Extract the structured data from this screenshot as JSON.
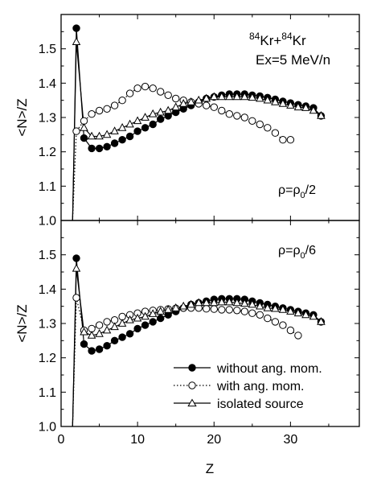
{
  "chart_data": [
    {
      "type": "line",
      "xlabel": "",
      "ylabel": "<N>/Z",
      "xlim": [
        0,
        39
      ],
      "ylim": [
        1.0,
        1.6
      ],
      "xticks": [
        0,
        10,
        20,
        30
      ],
      "yticks": [
        1.0,
        1.1,
        1.2,
        1.3,
        1.4,
        1.5
      ],
      "yticklabels": [
        "1.0",
        "1.1",
        "1.2",
        "1.3",
        "1.4",
        "1.5"
      ],
      "annotations": [
        {
          "name": "system",
          "text": "84Kr+84Kr",
          "parts": [
            "84",
            "Kr+",
            "84",
            "Kr"
          ]
        },
        {
          "name": "energy",
          "text": "Ex=5 MeV/n"
        },
        {
          "name": "density",
          "text": "ρ=ρ0/2",
          "parts": [
            "ρ=ρ",
            "0",
            "/2"
          ]
        }
      ],
      "series": [
        {
          "name": "without ang. mom.",
          "style": "solid-line-filled-circle",
          "x": [
            2,
            3,
            4,
            5,
            6,
            7,
            8,
            9,
            10,
            11,
            12,
            13,
            14,
            15,
            16,
            17,
            18,
            19,
            20,
            21,
            22,
            23,
            24,
            25,
            26,
            27,
            28,
            29,
            30,
            31,
            32,
            33,
            34
          ],
          "y": [
            1.56,
            1.24,
            1.21,
            1.21,
            1.215,
            1.225,
            1.235,
            1.245,
            1.26,
            1.27,
            1.28,
            1.295,
            1.305,
            1.315,
            1.325,
            1.335,
            1.345,
            1.355,
            1.36,
            1.365,
            1.368,
            1.368,
            1.368,
            1.365,
            1.362,
            1.358,
            1.353,
            1.347,
            1.342,
            1.337,
            1.333,
            1.328,
            1.305
          ]
        },
        {
          "name": "with ang. mom.",
          "style": "dotted-line-open-circle",
          "x": [
            2,
            3,
            4,
            5,
            6,
            7,
            8,
            9,
            10,
            11,
            12,
            13,
            14,
            15,
            16,
            17,
            18,
            19,
            20,
            21,
            22,
            23,
            24,
            25,
            26,
            27,
            28,
            29,
            30
          ],
          "y": [
            1.26,
            1.29,
            1.31,
            1.32,
            1.325,
            1.335,
            1.35,
            1.37,
            1.385,
            1.39,
            1.385,
            1.375,
            1.365,
            1.355,
            1.35,
            1.345,
            1.34,
            1.335,
            1.33,
            1.32,
            1.31,
            1.305,
            1.3,
            1.29,
            1.28,
            1.27,
            1.255,
            1.235,
            1.235
          ]
        },
        {
          "name": "isolated source",
          "style": "solid-line-open-triangle",
          "x": [
            2,
            3,
            4,
            5,
            6,
            7,
            8,
            9,
            10,
            11,
            12,
            13,
            14,
            15,
            16,
            17,
            18,
            19,
            20,
            21,
            22,
            23,
            24,
            25,
            26,
            27,
            28,
            29,
            30,
            31,
            32,
            33,
            34
          ],
          "y": [
            1.52,
            1.27,
            1.245,
            1.245,
            1.25,
            1.26,
            1.27,
            1.28,
            1.29,
            1.3,
            1.31,
            1.315,
            1.32,
            1.33,
            1.34,
            1.345,
            1.35,
            1.355,
            1.36,
            1.36,
            1.36,
            1.36,
            1.36,
            1.358,
            1.355,
            1.35,
            1.345,
            1.34,
            1.335,
            1.33,
            1.328,
            1.32,
            1.305
          ]
        }
      ]
    },
    {
      "type": "line",
      "xlabel": "Z",
      "ylabel": "<N>/Z",
      "xlim": [
        0,
        39
      ],
      "ylim": [
        1.0,
        1.6
      ],
      "xticks": [
        0,
        10,
        20,
        30
      ],
      "xticklabels": [
        "0",
        "10",
        "20",
        "30"
      ],
      "yticks": [
        1.0,
        1.1,
        1.2,
        1.3,
        1.4,
        1.5
      ],
      "yticklabels": [
        "1.0",
        "1.1",
        "1.2",
        "1.3",
        "1.4",
        "1.5"
      ],
      "annotations": [
        {
          "name": "density",
          "text": "ρ=ρ0/6",
          "parts": [
            "ρ=ρ",
            "0",
            "/6"
          ]
        }
      ],
      "legend": {
        "position": "bottom-right",
        "entries": [
          {
            "label": "without ang. mom.",
            "style": "solid-line-filled-circle"
          },
          {
            "label": "with ang. mom.",
            "style": "dotted-line-open-circle"
          },
          {
            "label": "isolated source",
            "style": "solid-line-open-triangle"
          }
        ]
      },
      "series": [
        {
          "name": "without ang. mom.",
          "style": "solid-line-filled-circle",
          "x": [
            2,
            3,
            4,
            5,
            6,
            7,
            8,
            9,
            10,
            11,
            12,
            13,
            14,
            15,
            16,
            17,
            18,
            19,
            20,
            21,
            22,
            23,
            24,
            25,
            26,
            27,
            28,
            29,
            30,
            31,
            32,
            33,
            34
          ],
          "y": [
            1.49,
            1.24,
            1.22,
            1.225,
            1.235,
            1.25,
            1.26,
            1.27,
            1.285,
            1.295,
            1.305,
            1.315,
            1.325,
            1.335,
            1.345,
            1.355,
            1.36,
            1.365,
            1.37,
            1.372,
            1.372,
            1.372,
            1.37,
            1.365,
            1.36,
            1.355,
            1.35,
            1.345,
            1.34,
            1.335,
            1.33,
            1.325,
            1.305
          ]
        },
        {
          "name": "with ang. mom.",
          "style": "dotted-line-open-circle",
          "x": [
            2,
            3,
            4,
            5,
            6,
            7,
            8,
            9,
            10,
            11,
            12,
            13,
            14,
            15,
            16,
            17,
            18,
            19,
            20,
            21,
            22,
            23,
            24,
            25,
            26,
            27,
            28,
            29,
            30,
            31
          ],
          "y": [
            1.375,
            1.28,
            1.285,
            1.295,
            1.305,
            1.31,
            1.32,
            1.325,
            1.33,
            1.335,
            1.338,
            1.34,
            1.342,
            1.344,
            1.345,
            1.345,
            1.345,
            1.343,
            1.342,
            1.34,
            1.34,
            1.338,
            1.335,
            1.33,
            1.325,
            1.315,
            1.305,
            1.295,
            1.28,
            1.265
          ]
        },
        {
          "name": "isolated source",
          "style": "solid-line-open-triangle",
          "x": [
            2,
            3,
            4,
            5,
            6,
            7,
            8,
            9,
            10,
            11,
            12,
            13,
            14,
            15,
            16,
            17,
            18,
            19,
            20,
            21,
            22,
            23,
            24,
            25,
            26,
            27,
            28,
            29,
            30,
            31,
            32,
            33,
            34
          ],
          "y": [
            1.46,
            1.275,
            1.265,
            1.27,
            1.28,
            1.29,
            1.3,
            1.31,
            1.315,
            1.32,
            1.328,
            1.335,
            1.34,
            1.345,
            1.35,
            1.355,
            1.36,
            1.36,
            1.36,
            1.362,
            1.362,
            1.36,
            1.358,
            1.355,
            1.35,
            1.345,
            1.343,
            1.34,
            1.335,
            1.33,
            1.325,
            1.32,
            1.305
          ]
        }
      ]
    }
  ]
}
